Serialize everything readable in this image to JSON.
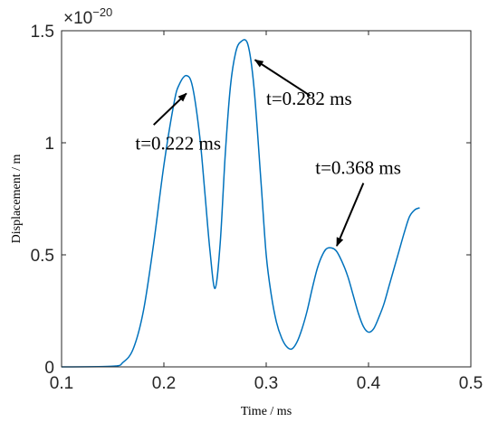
{
  "chart_data": {
    "type": "line",
    "xlabel": "Time / ms",
    "ylabel": "Displacement / m",
    "xlim": [
      0.1,
      0.5
    ],
    "ylim": [
      0,
      1.5
    ],
    "xticks": [
      "0.1",
      "0.2",
      "0.3",
      "0.4",
      "0.5"
    ],
    "yticks": [
      "0",
      "0.5",
      "1",
      "1.5"
    ],
    "y_multiplier": {
      "base": "×10",
      "exponent": "−20"
    },
    "grid": false,
    "series": [
      {
        "color": "#0072BD",
        "x": [
          0.1,
          0.15,
          0.16,
          0.17,
          0.18,
          0.19,
          0.2,
          0.21,
          0.215,
          0.222,
          0.228,
          0.235,
          0.24,
          0.245,
          0.25,
          0.255,
          0.26,
          0.265,
          0.27,
          0.275,
          0.282,
          0.288,
          0.295,
          0.3,
          0.305,
          0.31,
          0.315,
          0.32,
          0.325,
          0.33,
          0.335,
          0.34,
          0.345,
          0.35,
          0.355,
          0.36,
          0.368,
          0.375,
          0.38,
          0.385,
          0.39,
          0.395,
          0.4,
          0.405,
          0.41,
          0.415,
          0.42,
          0.425,
          0.43,
          0.435,
          0.44,
          0.445,
          0.45
        ],
        "y": [
          0.0,
          0.003,
          0.02,
          0.08,
          0.25,
          0.55,
          0.9,
          1.18,
          1.26,
          1.3,
          1.25,
          1.03,
          0.78,
          0.52,
          0.35,
          0.55,
          0.95,
          1.25,
          1.4,
          1.45,
          1.44,
          1.25,
          0.82,
          0.5,
          0.32,
          0.2,
          0.13,
          0.09,
          0.08,
          0.11,
          0.17,
          0.25,
          0.35,
          0.44,
          0.5,
          0.53,
          0.52,
          0.46,
          0.4,
          0.32,
          0.24,
          0.18,
          0.155,
          0.17,
          0.22,
          0.28,
          0.36,
          0.44,
          0.52,
          0.6,
          0.67,
          0.7,
          0.71
        ]
      }
    ],
    "annotations": [
      {
        "text": "t=0.222 ms",
        "text_x": 0.172,
        "text_y": 0.97,
        "tail_x": 0.19,
        "tail_y": 1.08,
        "head_x": 0.222,
        "head_y": 1.22
      },
      {
        "text": "t=0.282 ms",
        "text_x": 0.3,
        "text_y": 1.17,
        "tail_x": 0.343,
        "tail_y": 1.21,
        "head_x": 0.289,
        "head_y": 1.37
      },
      {
        "text": "t=0.368 ms",
        "text_x": 0.348,
        "text_y": 0.86,
        "tail_x": 0.395,
        "tail_y": 0.82,
        "head_x": 0.369,
        "head_y": 0.54
      }
    ]
  }
}
